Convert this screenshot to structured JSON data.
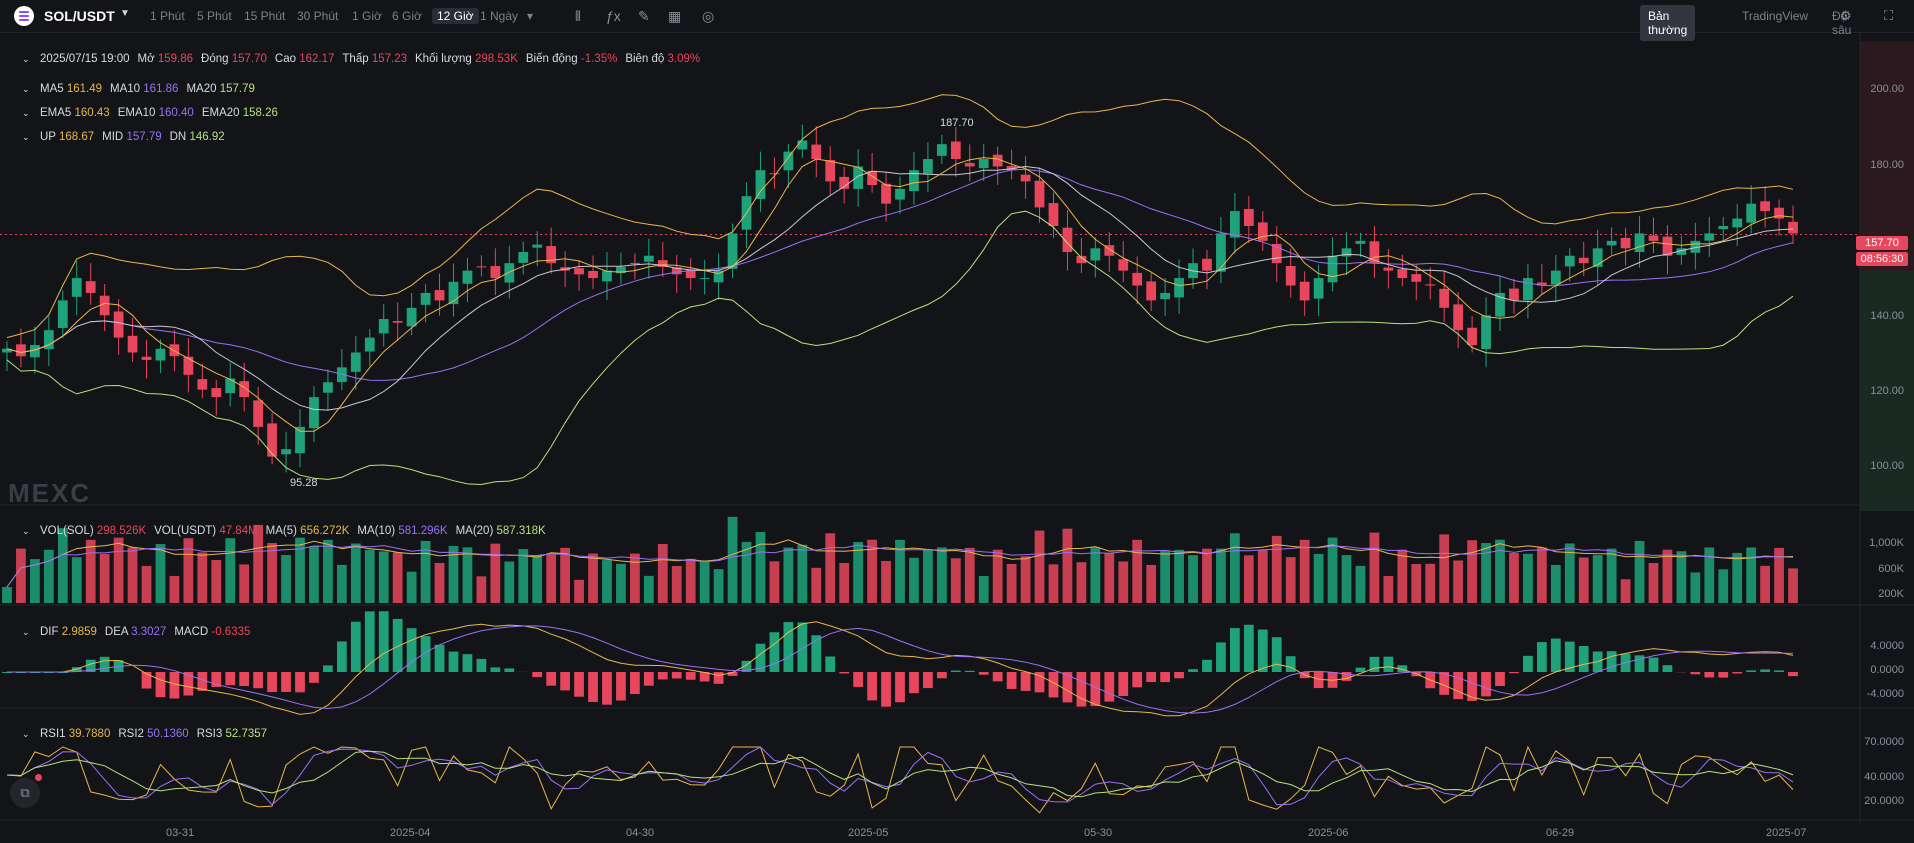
{
  "toolbar": {
    "symbol": "SOL/USDT",
    "timeframes": [
      {
        "label": "1 Phút",
        "active": false
      },
      {
        "label": "5 Phút",
        "active": false
      },
      {
        "label": "15 Phút",
        "active": false
      },
      {
        "label": "30 Phút",
        "active": false
      },
      {
        "label": "1 Giờ",
        "active": false
      },
      {
        "label": "6 Giờ",
        "active": false
      },
      {
        "label": "12 Giờ",
        "active": true
      },
      {
        "label": "1 Ngày",
        "active": false
      }
    ],
    "views": [
      {
        "label": "Bản thường",
        "active": true
      },
      {
        "label": "TradingView",
        "active": false
      },
      {
        "label": "Độ sâu",
        "active": false
      }
    ]
  },
  "legend": {
    "date": "2025/07/15 19:00",
    "ohlc": [
      {
        "k": "Mở",
        "v": "159.86",
        "color": "#e7465c"
      },
      {
        "k": "Đóng",
        "v": "157.70",
        "color": "#e7465c"
      },
      {
        "k": "Cao",
        "v": "162.17",
        "color": "#e7465c"
      },
      {
        "k": "Thấp",
        "v": "157.23",
        "color": "#e7465c"
      },
      {
        "k": "Khối lượng",
        "v": "298.53K",
        "color": "#e7465c"
      },
      {
        "k": "Biến động",
        "v": "-1.35%",
        "color": "#e7465c"
      },
      {
        "k": "Biên độ",
        "v": "3.09%",
        "color": "#e7465c"
      }
    ],
    "ma": [
      {
        "k": "MA5",
        "v": "161.49",
        "color": "#e8b64b"
      },
      {
        "k": "MA10",
        "v": "161.86",
        "color": "#9b71f5"
      },
      {
        "k": "MA20",
        "v": "157.79",
        "color": "#b7e27a"
      }
    ],
    "ema": [
      {
        "k": "EMA5",
        "v": "160.43",
        "color": "#e8b64b"
      },
      {
        "k": "EMA10",
        "v": "160.40",
        "color": "#9b71f5"
      },
      {
        "k": "EMA20",
        "v": "158.26",
        "color": "#b7e27a"
      }
    ],
    "boll": [
      {
        "k": "UP",
        "v": "168.67",
        "color": "#e8b64b"
      },
      {
        "k": "MID",
        "v": "157.79",
        "color": "#9b71f5"
      },
      {
        "k": "DN",
        "v": "146.92",
        "color": "#b7e27a"
      }
    ],
    "vol": [
      {
        "k": "VOL(SOL)",
        "v": "298.526K",
        "color": "#e7465c"
      },
      {
        "k": "VOL(USDT)",
        "v": "47.84M",
        "color": "#e7465c"
      },
      {
        "k": "MA(5)",
        "v": "656.272K",
        "color": "#e8b64b"
      },
      {
        "k": "MA(10)",
        "v": "581.296K",
        "color": "#9b71f5"
      },
      {
        "k": "MA(20)",
        "v": "587.318K",
        "color": "#b7e27a"
      }
    ],
    "macd": [
      {
        "k": "DIF",
        "v": "2.9859",
        "color": "#e8b64b"
      },
      {
        "k": "DEA",
        "v": "3.3027",
        "color": "#9b71f5"
      },
      {
        "k": "MACD",
        "v": "-0.6335",
        "color": "#e7465c"
      }
    ],
    "rsi": [
      {
        "k": "RSI1",
        "v": "39.7880",
        "color": "#e8b64b"
      },
      {
        "k": "RSI2",
        "v": "50.1360",
        "color": "#9b71f5"
      },
      {
        "k": "RSI3",
        "v": "52.7357",
        "color": "#b7e27a"
      }
    ]
  },
  "price_axis": [
    "200.00",
    "180.00",
    "160.00",
    "140.00",
    "120.00",
    "100.00"
  ],
  "last_price": "157.70",
  "countdown": "08:56:30",
  "volume_axis": [
    "1,000K",
    "600K",
    "200K"
  ],
  "macd_axis": [
    "4.0000",
    "0.0000",
    "-4.0000"
  ],
  "rsi_axis": [
    "70.0000",
    "40.0000",
    "20.0000"
  ],
  "high_marker": "187.70",
  "low_marker": "95.28",
  "watermark": "MEXC",
  "dates": [
    "03-31",
    "2025-04",
    "04-30",
    "2025-05",
    "05-30",
    "2025-06",
    "06-29",
    "2025-07"
  ],
  "colors": {
    "up": "#1fa27a",
    "down": "#e7465c",
    "ma5": "#e8b64b",
    "ma10": "#9b71f5",
    "ma20": "#b7e27a"
  },
  "chart_data": {
    "type": "candlestick",
    "approx_closes_12h": [
      127,
      125,
      128,
      132,
      140,
      146,
      142,
      136,
      130,
      126,
      124,
      127,
      125,
      120,
      116,
      114,
      119,
      114,
      106,
      98,
      100,
      106,
      114,
      118,
      122,
      126,
      130,
      135,
      134,
      138,
      142,
      140,
      145,
      148,
      149,
      146,
      150,
      153,
      155,
      150,
      148,
      147,
      146,
      148,
      149,
      150,
      152,
      149,
      147,
      146,
      146,
      148,
      158,
      168,
      175,
      174,
      180,
      183,
      178,
      172,
      170,
      176,
      171,
      166,
      170,
      175,
      178,
      182,
      178,
      176,
      178,
      176,
      175,
      172,
      165,
      160,
      153,
      150,
      154,
      152,
      148,
      144,
      140,
      142,
      146,
      150,
      148,
      158,
      164,
      160,
      156,
      150,
      144,
      140,
      146,
      152,
      154,
      156,
      150,
      148,
      146,
      145,
      144,
      138,
      132,
      128,
      136,
      142,
      140,
      146,
      144,
      148,
      152,
      150,
      154,
      156,
      154,
      158,
      156,
      152,
      154,
      156,
      158,
      160,
      162,
      166,
      164,
      162,
      158
    ],
    "ylim": [
      85,
      210
    ]
  }
}
